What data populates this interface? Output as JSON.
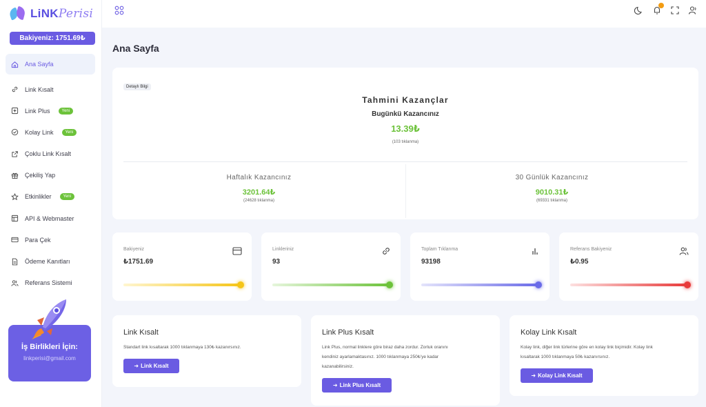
{
  "brand": {
    "logo_a": "LiNK",
    "logo_b": "Perisi"
  },
  "sidebar": {
    "balance": "Bakiyeniz: 1751.69₺",
    "items": [
      {
        "label": "Ana Sayfa",
        "icon": "home-icon",
        "active": true
      },
      {
        "label": "Link Kısalt",
        "icon": "link-icon"
      },
      {
        "label": "Link Plus",
        "icon": "plus-square-icon",
        "badge": "Yeni"
      },
      {
        "label": "Kolay Link",
        "icon": "check-circle-icon",
        "badge": "Yeni"
      },
      {
        "label": "Çoklu Link Kısalt",
        "icon": "external-link-icon"
      },
      {
        "label": "Çekiliş Yap",
        "icon": "gift-icon"
      },
      {
        "label": "Etkinlikler",
        "icon": "star-icon",
        "badge": "Yeni"
      },
      {
        "label": "API & Webmaster",
        "icon": "layout-icon"
      },
      {
        "label": "Para Çek",
        "icon": "credit-card-icon"
      },
      {
        "label": "Ödeme Kanıtları",
        "icon": "file-icon"
      },
      {
        "label": "Referans Sistemi",
        "icon": "users-icon"
      }
    ],
    "partner": {
      "title": "İş Birlikleri İçin:",
      "email": "linkperisi@gmail.com"
    }
  },
  "topbar": {
    "icons": [
      "moon-icon",
      "bell-icon",
      "fullscreen-icon",
      "user-icon"
    ]
  },
  "page": {
    "title": "Ana Sayfa"
  },
  "earnings": {
    "tag": "Detaylı Bilgi",
    "title": "Tahmini Kazançlar",
    "today_label": "Bugünkü Kazancınız",
    "today_amount": "13.39₺",
    "today_clicks": "(103 tıklanma)",
    "weekly_label": "Haftalık Kazancınız",
    "weekly_amount": "3201.64₺",
    "weekly_clicks": "(24628 tıklanma)",
    "monthly_label": "30 Günlük Kazancınız",
    "monthly_amount": "9010.31₺",
    "monthly_clicks": "(69331 tıklanma)"
  },
  "stats": [
    {
      "label": "Bakiyeniz",
      "value": "₺1751.69",
      "icon": "wallet-icon",
      "color": "#f5c518"
    },
    {
      "label": "Linkleriniz",
      "value": "93",
      "icon": "link-icon",
      "color": "#6cc23a"
    },
    {
      "label": "Toplam Tıklanma",
      "value": "93198",
      "icon": "bar-chart-icon",
      "color": "#6a6be8"
    },
    {
      "label": "Referans Bakiyeniz",
      "value": "₺0.95",
      "icon": "users-icon",
      "color": "#e83a3a"
    }
  ],
  "actions": [
    {
      "title": "Link Kısalt",
      "desc": "Standart link kısaltarak 1000 tıklanmaya 130₺ kazanırsınız.",
      "button": "Link Kısalt"
    },
    {
      "title": "Link Plus Kısalt",
      "desc_lines": [
        "Link Plus, normal linklere göre biraz daha zordur. Zorluk oranını",
        "kendiniz ayarlamaktasınız. 1000 tıklanmaya 250₺'ye kadar",
        "kazanabilirsiniz."
      ],
      "button": "Link Plus Kısalt"
    },
    {
      "title": "Kolay Link Kısalt",
      "desc_lines": [
        "Kolay link, diğer link türlerine göre en kolay link biçimidir. Kolay link",
        "kısaltarak 1000 tıklanmaya 50₺ kazanırsınız."
      ],
      "button": "Kolay Link Kısalt"
    }
  ]
}
